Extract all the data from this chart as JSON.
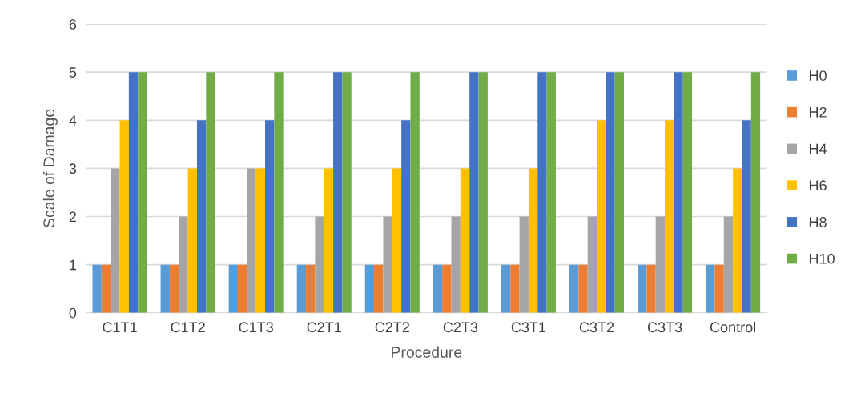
{
  "chart_data": {
    "type": "bar",
    "xlabel": "Procedure",
    "ylabel": "Scale of Damage",
    "categories": [
      "C1T1",
      "C1T2",
      "C1T3",
      "C2T1",
      "C2T2",
      "C2T3",
      "C3T1",
      "C3T2",
      "C3T3",
      "Control"
    ],
    "series": [
      {
        "name": "H0",
        "color": "#5b9bd5",
        "values": [
          1,
          1,
          1,
          1,
          1,
          1,
          1,
          1,
          1,
          1
        ]
      },
      {
        "name": "H2",
        "color": "#ed7d31",
        "values": [
          1,
          1,
          1,
          1,
          1,
          1,
          1,
          1,
          1,
          1
        ]
      },
      {
        "name": "H4",
        "color": "#a5a5a5",
        "values": [
          3,
          2,
          3,
          2,
          2,
          2,
          2,
          2,
          2,
          2
        ]
      },
      {
        "name": "H6",
        "color": "#ffc000",
        "values": [
          4,
          3,
          3,
          3,
          3,
          3,
          3,
          4,
          4,
          3
        ]
      },
      {
        "name": "H8",
        "color": "#4472c4",
        "values": [
          5,
          4,
          4,
          5,
          4,
          5,
          5,
          5,
          5,
          4
        ]
      },
      {
        "name": "H10",
        "color": "#70ad47",
        "values": [
          5,
          5,
          5,
          5,
          5,
          5,
          5,
          5,
          5,
          5
        ]
      }
    ],
    "ylim": [
      0,
      6
    ],
    "yticks": [
      0,
      1,
      2,
      3,
      4,
      5,
      6
    ],
    "grid": "y",
    "legend": "right"
  }
}
